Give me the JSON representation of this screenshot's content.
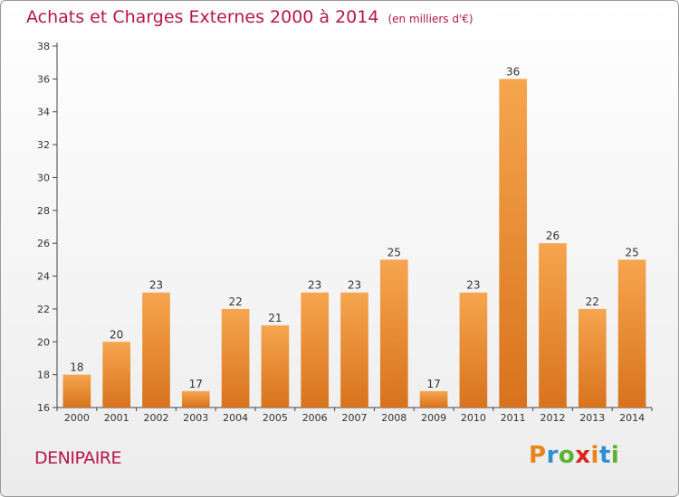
{
  "title": "Achats et Charges Externes 2000 à 2014",
  "subtitle": "(en milliers d'€)",
  "commune": "DENIPAIRE",
  "brand": {
    "letters": [
      "P",
      "r",
      "o",
      "x",
      "i",
      "t",
      "i"
    ],
    "colors": [
      "#e8841a",
      "#2f8fd0",
      "#5ab232",
      "#d8261d",
      "#e8841a",
      "#2f8fd0",
      "#5ab232"
    ]
  },
  "colors": {
    "bar_light": "#f6a54f",
    "bar_dark": "#d8731c",
    "title": "#b5174a"
  },
  "chart_data": {
    "type": "bar",
    "categories": [
      "2000",
      "2001",
      "2002",
      "2003",
      "2004",
      "2005",
      "2006",
      "2007",
      "2008",
      "2009",
      "2010",
      "2011",
      "2012",
      "2013",
      "2014"
    ],
    "values": [
      18,
      20,
      23,
      17,
      22,
      21,
      23,
      23,
      25,
      17,
      23,
      36,
      26,
      22,
      25
    ],
    "ylim": [
      16,
      38
    ],
    "yticks": [
      16,
      18,
      20,
      22,
      24,
      26,
      28,
      30,
      32,
      34,
      36,
      38
    ],
    "grid": false,
    "xlabel": "",
    "ylabel": ""
  }
}
